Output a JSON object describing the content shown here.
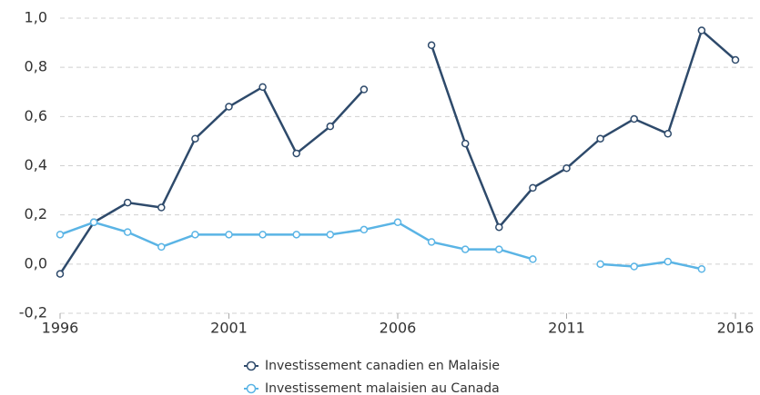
{
  "chart_data": {
    "type": "line",
    "x": [
      1996,
      1997,
      1998,
      1999,
      2000,
      2001,
      2002,
      2003,
      2004,
      2005,
      2006,
      2007,
      2008,
      2009,
      2010,
      2011,
      2012,
      2013,
      2014,
      2015,
      2016
    ],
    "series": [
      {
        "name": "Investissement canadien en Malaisie",
        "color": "#2e4a6b",
        "values": [
          -0.04,
          0.17,
          0.25,
          0.23,
          0.51,
          0.64,
          0.72,
          0.45,
          0.56,
          0.71,
          null,
          0.89,
          0.49,
          0.15,
          0.31,
          0.39,
          0.51,
          0.59,
          0.53,
          0.95,
          0.83
        ]
      },
      {
        "name": "Investissement malaisien au Canada",
        "color": "#5ab4e5",
        "values": [
          0.12,
          0.17,
          0.13,
          0.07,
          0.12,
          0.12,
          0.12,
          0.12,
          0.12,
          0.14,
          0.17,
          0.09,
          0.06,
          0.06,
          0.02,
          null,
          0.0,
          -0.01,
          0.01,
          -0.02,
          null
        ]
      }
    ],
    "xlim": [
      1996,
      2016
    ],
    "xticks": [
      1996,
      2001,
      2006,
      2011,
      2016
    ],
    "ylim": [
      -0.2,
      1.0
    ],
    "yticks": [
      {
        "value": -0.2,
        "label": "-0,2"
      },
      {
        "value": 0,
        "label": "0,0"
      },
      {
        "value": 0.2,
        "label": "0,2"
      },
      {
        "value": 0.4,
        "label": "0,4"
      },
      {
        "value": 0.6,
        "label": "0,6"
      },
      {
        "value": 0.8,
        "label": "0,8"
      },
      {
        "value": 1.0,
        "label": "1,0"
      }
    ],
    "grid": true,
    "legend": "bottom"
  }
}
